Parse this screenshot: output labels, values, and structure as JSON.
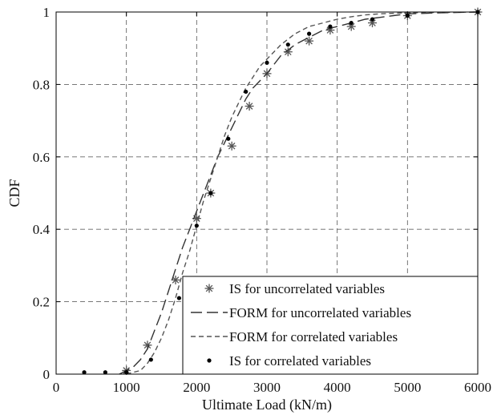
{
  "chart_data": {
    "type": "line",
    "xlabel": "Ultimate Load (kN/m)",
    "ylabel": "CDF",
    "xlim": [
      0,
      6000
    ],
    "ylim": [
      0,
      1
    ],
    "xticks": [
      0,
      1000,
      2000,
      3000,
      4000,
      5000,
      6000
    ],
    "yticks": [
      0,
      0.2,
      0.4,
      0.6,
      0.8,
      1
    ],
    "xtick_labels": [
      "0",
      "1000",
      "2000",
      "3000",
      "4000",
      "5000",
      "6000"
    ],
    "ytick_labels": [
      "0",
      "0.2",
      "0.4",
      "0.6",
      "0.8",
      "1"
    ],
    "grid": true,
    "legend_position": "bottom-right",
    "series": [
      {
        "name": "IS for uncorrelated variables",
        "style": "star-markers",
        "color": "#555555",
        "x": [
          1000,
          1300,
          1700,
          2000,
          2200,
          2500,
          2750,
          3000,
          3300,
          3600,
          3900,
          4200,
          4500,
          5000,
          6000
        ],
        "y": [
          0.01,
          0.08,
          0.26,
          0.43,
          0.5,
          0.63,
          0.74,
          0.83,
          0.89,
          0.92,
          0.95,
          0.96,
          0.97,
          0.99,
          1.0
        ]
      },
      {
        "name": "FORM for uncorrelated variables",
        "style": "long-dash",
        "color": "#333333",
        "x": [
          900,
          1000,
          1100,
          1200,
          1300,
          1400,
          1500,
          1600,
          1700,
          1800,
          1900,
          2000,
          2100,
          2200,
          2300,
          2400,
          2500,
          2600,
          2700,
          2800,
          2900,
          3000,
          3200,
          3400,
          3600,
          3800,
          4000,
          4200,
          4400,
          4600,
          4800,
          5000,
          5500,
          6000
        ],
        "y": [
          0.0,
          0.01,
          0.02,
          0.04,
          0.07,
          0.12,
          0.17,
          0.23,
          0.29,
          0.35,
          0.4,
          0.45,
          0.5,
          0.55,
          0.6,
          0.64,
          0.68,
          0.72,
          0.76,
          0.79,
          0.81,
          0.83,
          0.88,
          0.91,
          0.93,
          0.95,
          0.96,
          0.97,
          0.98,
          0.985,
          0.99,
          0.995,
          0.998,
          1.0
        ]
      },
      {
        "name": "FORM for correlated variables",
        "style": "short-dash",
        "color": "#555555",
        "x": [
          1000,
          1100,
          1200,
          1300,
          1400,
          1500,
          1600,
          1700,
          1800,
          1900,
          2000,
          2100,
          2200,
          2300,
          2400,
          2500,
          2600,
          2700,
          2800,
          2900,
          3000,
          3200,
          3400,
          3600,
          3800,
          4000,
          4200,
          4400,
          4600,
          5000,
          5500,
          6000
        ],
        "y": [
          0.0,
          0.005,
          0.01,
          0.03,
          0.06,
          0.1,
          0.15,
          0.21,
          0.28,
          0.34,
          0.41,
          0.48,
          0.54,
          0.6,
          0.66,
          0.71,
          0.75,
          0.79,
          0.82,
          0.85,
          0.87,
          0.91,
          0.94,
          0.96,
          0.97,
          0.98,
          0.987,
          0.992,
          0.995,
          0.998,
          0.999,
          1.0
        ]
      },
      {
        "name": "IS for correlated variables",
        "style": "dot-markers",
        "color": "#000000",
        "x": [
          400,
          700,
          1000,
          1350,
          1750,
          2000,
          2200,
          2450,
          2700,
          3000,
          3300,
          3600,
          3900,
          4200,
          4500,
          5000,
          6000
        ],
        "y": [
          0.005,
          0.005,
          0.005,
          0.04,
          0.21,
          0.41,
          0.5,
          0.65,
          0.78,
          0.86,
          0.91,
          0.94,
          0.96,
          0.97,
          0.98,
          0.99,
          1.0
        ]
      }
    ]
  }
}
